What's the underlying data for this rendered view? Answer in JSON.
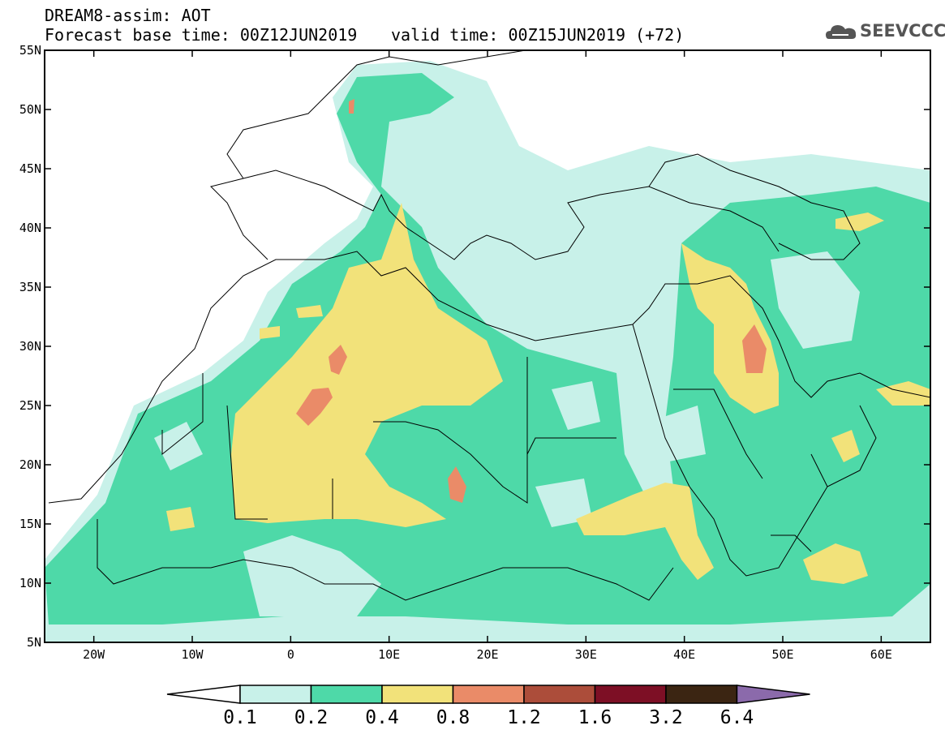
{
  "header": {
    "product": "DREAM8-assim: AOT",
    "base_time": "Forecast base time: 00Z12JUN2019",
    "valid_time": "valid time: 00Z15JUN2019 (+72)"
  },
  "logo": {
    "text": "SEEVCCC",
    "icon": "cloud-icon"
  },
  "axes": {
    "lat_labels": [
      "55N",
      "50N",
      "45N",
      "40N",
      "35N",
      "30N",
      "25N",
      "20N",
      "15N",
      "10N",
      "5N"
    ],
    "lon_labels": [
      "20W",
      "10W",
      "0",
      "10E",
      "20E",
      "30E",
      "40E",
      "50E",
      "60E"
    ],
    "lat_range": [
      5,
      55
    ],
    "lon_range": [
      -25,
      65
    ]
  },
  "colorbar": {
    "labels": [
      "0.1",
      "0.2",
      "0.4",
      "0.8",
      "1.2",
      "1.6",
      "3.2",
      "6.4"
    ],
    "colors": [
      "#c8f1e9",
      "#4ed9a8",
      "#f2e27a",
      "#ea8b68",
      "#ac4d3a",
      "#7d0f25",
      "#3b2512",
      "#8b6aab"
    ]
  }
}
